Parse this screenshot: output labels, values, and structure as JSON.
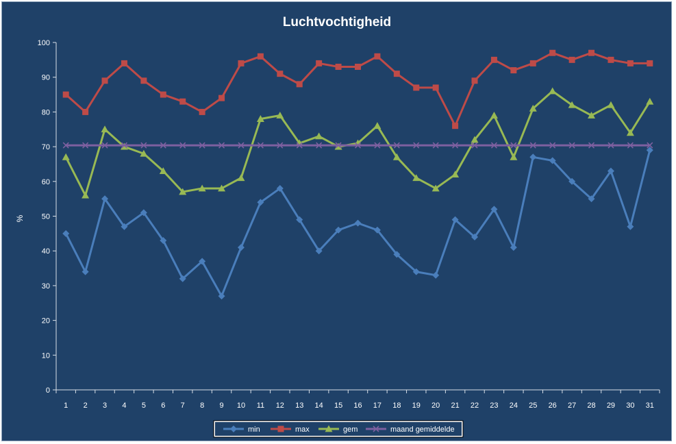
{
  "chart_data": {
    "type": "line",
    "title": "Luchtvochtigheid",
    "xlabel": "",
    "ylabel": "%",
    "ylim": [
      0,
      100
    ],
    "yticks": [
      0,
      10,
      20,
      30,
      40,
      50,
      60,
      70,
      80,
      90,
      100
    ],
    "grid": false,
    "legend_position": "bottom",
    "background": "#1f4168",
    "categories": [
      "1",
      "2",
      "3",
      "4",
      "5",
      "6",
      "7",
      "8",
      "9",
      "10",
      "11",
      "12",
      "13",
      "14",
      "15",
      "16",
      "17",
      "18",
      "19",
      "20",
      "21",
      "22",
      "23",
      "24",
      "25",
      "26",
      "27",
      "28",
      "29",
      "30",
      "31"
    ],
    "series": [
      {
        "name": "min",
        "color": "#4a7ebb",
        "marker": "diamond",
        "values": [
          45,
          34,
          55,
          47,
          51,
          43,
          32,
          37,
          27,
          41,
          54,
          58,
          49,
          40,
          46,
          48,
          46,
          39,
          34,
          33,
          49,
          44,
          52,
          41,
          67,
          66,
          60,
          55,
          63,
          47,
          69
        ]
      },
      {
        "name": "max",
        "color": "#be4b48",
        "marker": "square",
        "values": [
          85,
          80,
          89,
          94,
          89,
          85,
          83,
          80,
          84,
          94,
          96,
          91,
          88,
          94,
          93,
          93,
          96,
          91,
          87,
          87,
          76,
          89,
          95,
          92,
          94,
          97,
          95,
          97,
          95,
          94,
          94
        ]
      },
      {
        "name": "gem",
        "color": "#98b954",
        "marker": "triangle",
        "values": [
          67,
          56,
          75,
          70,
          68,
          63,
          57,
          58,
          58,
          61,
          78,
          79,
          71,
          73,
          70,
          71,
          76,
          67,
          61,
          58,
          62,
          72,
          79,
          67,
          81,
          86,
          82,
          79,
          82,
          74,
          83
        ]
      },
      {
        "name": "maand gemiddelde",
        "color": "#7d60a0",
        "marker": "x",
        "values": [
          70.4,
          70.4,
          70.4,
          70.4,
          70.4,
          70.4,
          70.4,
          70.4,
          70.4,
          70.4,
          70.4,
          70.4,
          70.4,
          70.4,
          70.4,
          70.4,
          70.4,
          70.4,
          70.4,
          70.4,
          70.4,
          70.4,
          70.4,
          70.4,
          70.4,
          70.4,
          70.4,
          70.4,
          70.4,
          70.4,
          70.4
        ]
      }
    ]
  }
}
